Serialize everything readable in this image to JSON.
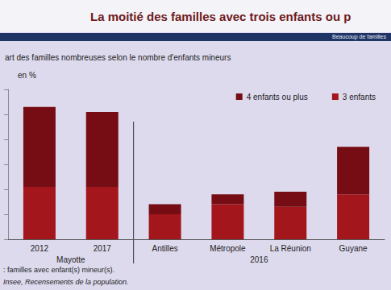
{
  "chart_data": {
    "type": "bar",
    "title": "La moitié des familles avec trois enfants ou p",
    "banner": "Beaucoup de familles",
    "subtitle": "art des familles nombreuses selon le nombre d'enfants mineurs",
    "unit_label": "en %",
    "categories": [
      "2012",
      "2017",
      "Antilles",
      "Métropole",
      "La Réunion",
      "Guyane"
    ],
    "groups": [
      {
        "label": "Mayotte",
        "size": 2
      },
      {
        "label": "2016",
        "size": 4
      }
    ],
    "series": [
      {
        "name": "4 enfants ou plus",
        "color": "#760d15",
        "values": [
          32,
          30,
          4,
          4,
          6,
          19
        ]
      },
      {
        "name": "3 enfants",
        "color": "#a3161b",
        "values": [
          21,
          21,
          10,
          14,
          13,
          18
        ]
      }
    ],
    "stacked": true,
    "ylim": [
      0,
      60
    ],
    "yticks": [
      0,
      10,
      20,
      30,
      40,
      50,
      60
    ],
    "grid": false,
    "tick_labels": "x",
    "legend": "top-right",
    "notes": [
      ": familles avec enfant(s) mineur(s).",
      "Insee, Recensements de la population."
    ]
  }
}
